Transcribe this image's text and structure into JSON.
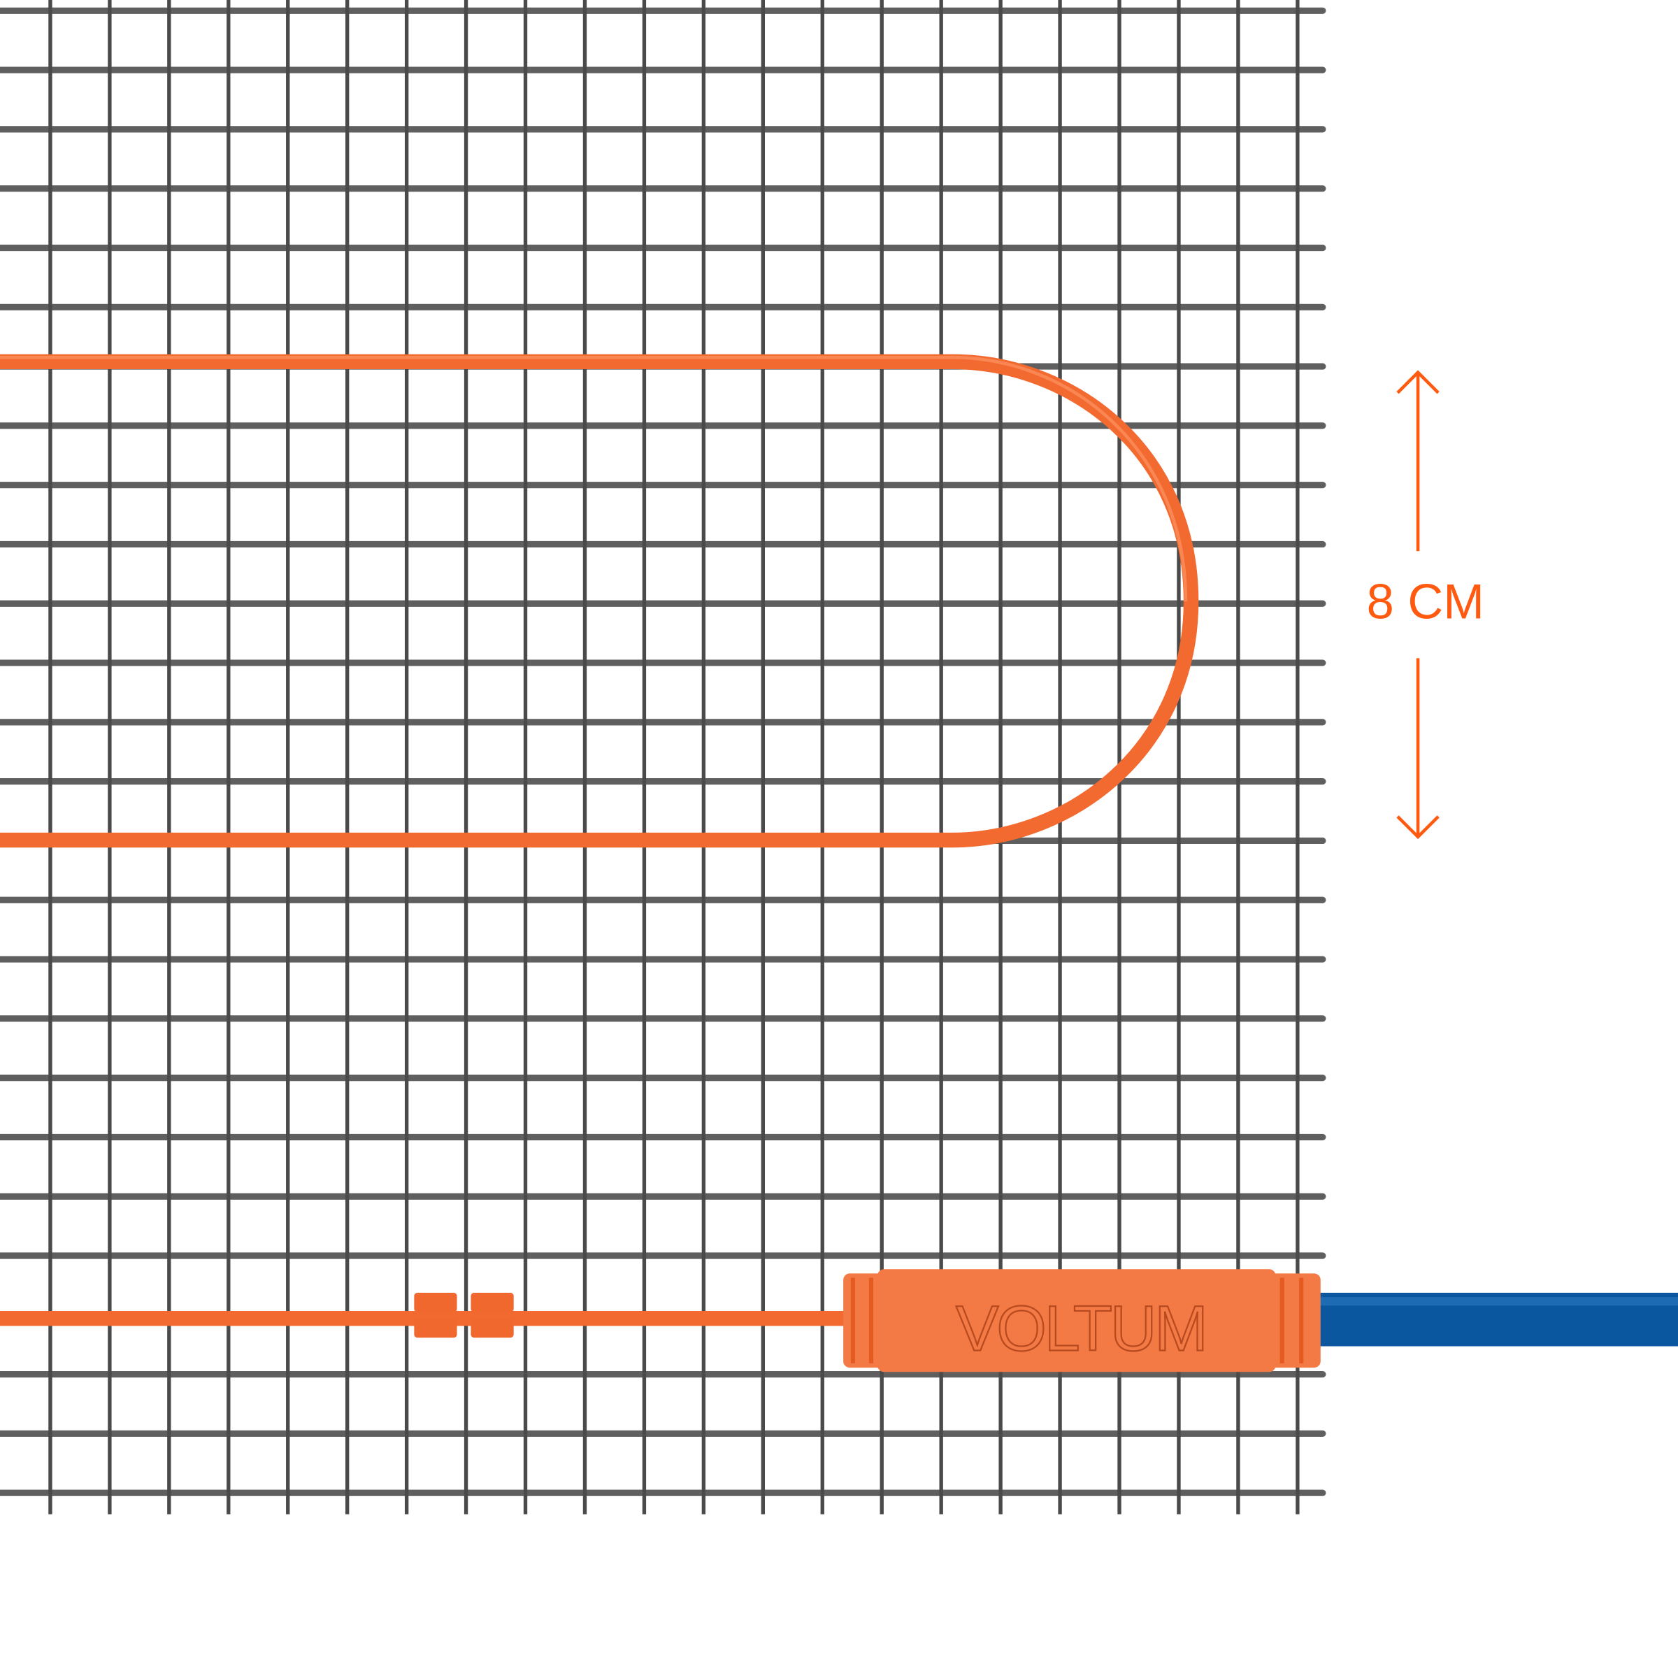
{
  "dimension": {
    "label": "8 CM",
    "color": "#ff5a10"
  },
  "connector": {
    "brand": "VOLTUM",
    "color": "#f47a45"
  },
  "colors": {
    "mesh": "#5f5f5f",
    "heating_cable": "#f26a30",
    "supply_cable": "#0a57a0",
    "background": "#ffffff"
  },
  "icons": {
    "up": "arrow-up-icon",
    "down": "arrow-down-icon"
  }
}
